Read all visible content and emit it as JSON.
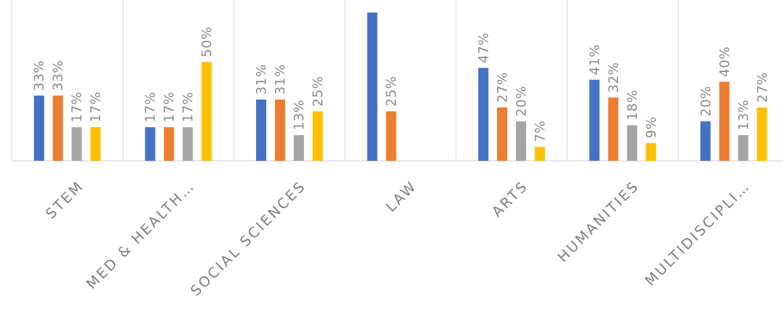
{
  "chart_data": {
    "type": "bar",
    "categories": [
      "STEM",
      "MED & HEALTH…",
      "SOCIAL SCIENCES",
      "LAW",
      "ARTS",
      "HUMANITIES",
      "MULTIDISCIPLI…"
    ],
    "series": [
      {
        "values": [
          33,
          17,
          31,
          75,
          47,
          41,
          20
        ],
        "labels": [
          "33%",
          "17%",
          "31%",
          "",
          "47%",
          "41%",
          "20%"
        ],
        "color": "#4472c4"
      },
      {
        "values": [
          33,
          17,
          31,
          25,
          27,
          32,
          40
        ],
        "labels": [
          "33%",
          "17%",
          "31%",
          "25%",
          "27%",
          "32%",
          "40%"
        ],
        "color": "#ed7d31"
      },
      {
        "values": [
          17,
          17,
          13,
          null,
          20,
          18,
          13
        ],
        "labels": [
          "17%",
          "17%",
          "13%",
          "",
          "20%",
          "18%",
          "13%"
        ],
        "color": "#a5a5a5"
      },
      {
        "values": [
          17,
          50,
          25,
          null,
          7,
          9,
          27
        ],
        "labels": [
          "17%",
          "50%",
          "25%",
          "",
          "7%",
          "9%",
          "27%"
        ],
        "color": "#ffc000"
      }
    ],
    "ylim": [
      0,
      75
    ],
    "grid": "vertical category separators",
    "legend": "none",
    "xlabel": "",
    "ylabel": ""
  }
}
